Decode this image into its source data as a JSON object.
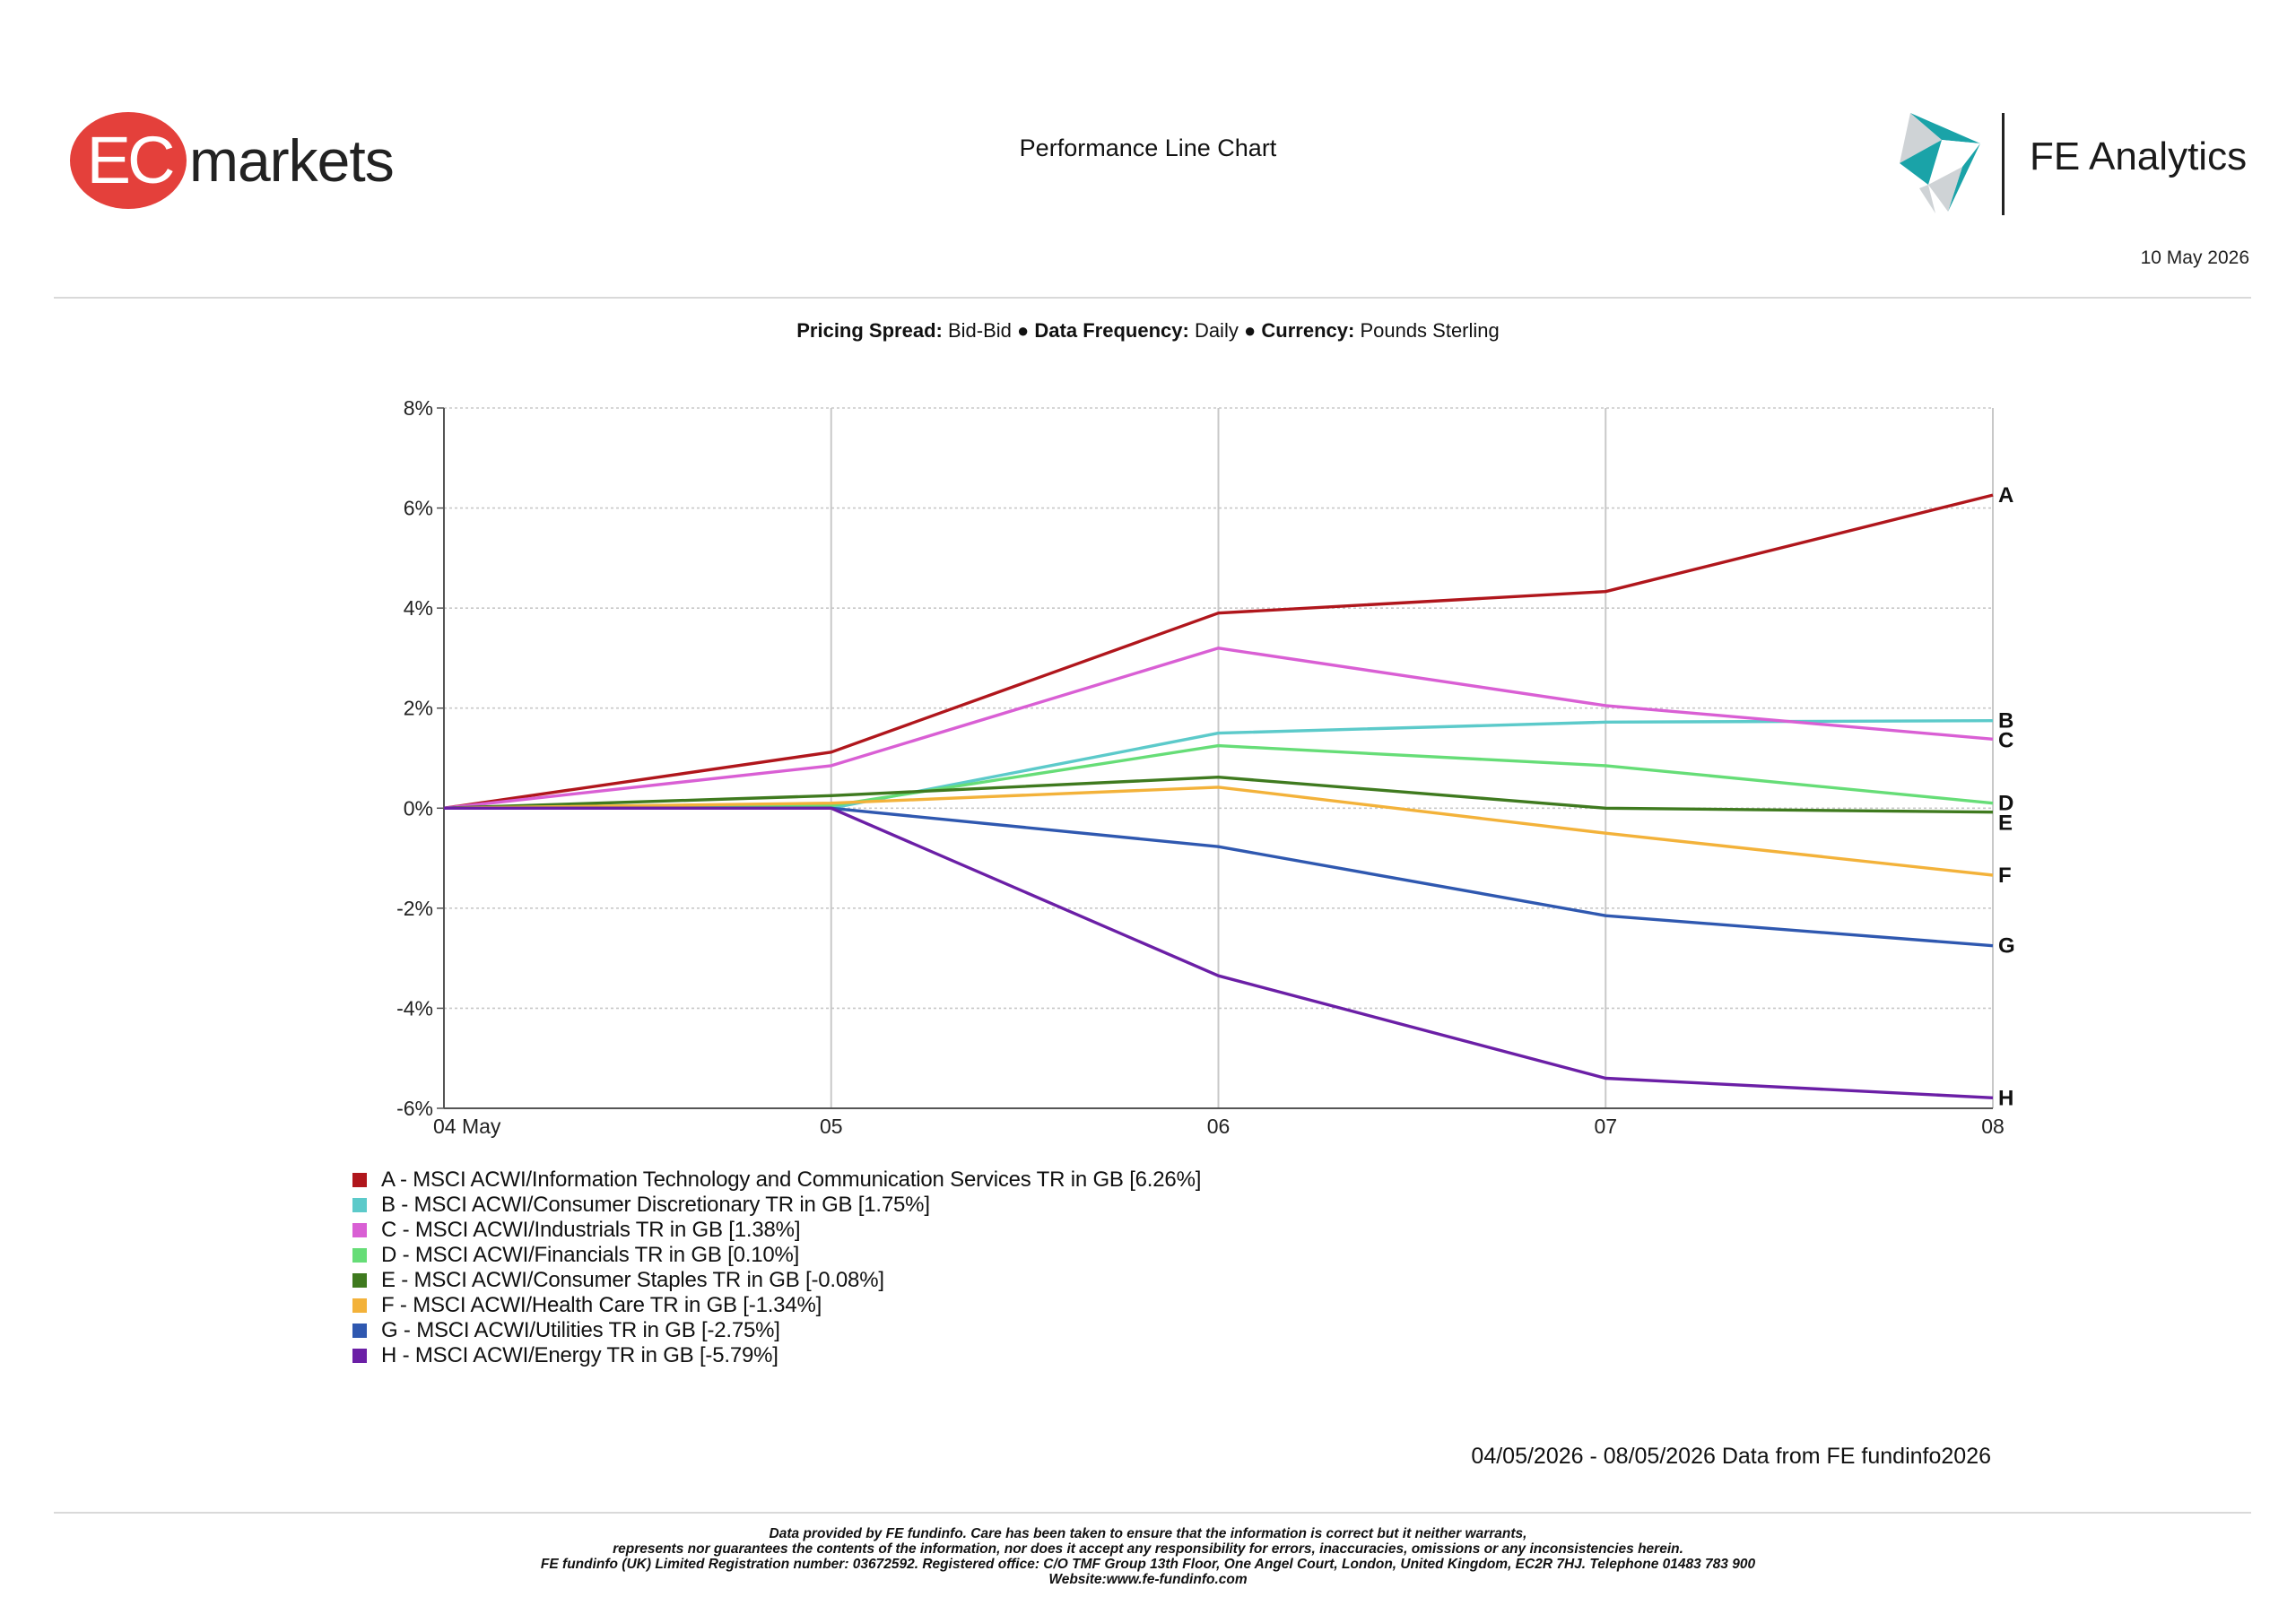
{
  "header": {
    "ec_logo_letters": "EC",
    "ec_logo_word": "markets",
    "title": "Performance Line Chart",
    "fe_logo_word": "FE Analytics",
    "date": "10 May 2026"
  },
  "settings": {
    "pricing_spread_label": "Pricing Spread:",
    "pricing_spread_value": "Bid-Bid",
    "separator": "●",
    "data_frequency_label": "Data Frequency:",
    "data_frequency_value": "Daily",
    "currency_label": "Currency:",
    "currency_value": "Pounds Sterling"
  },
  "colors": {
    "ec_red": "#e4403b",
    "fe_teal": "#1aa3a8",
    "fe_grey": "#cfd3d6",
    "grid": "#c8c8c8",
    "axis": "#555555"
  },
  "chart_data": {
    "type": "line",
    "x": [
      "04 May",
      "05",
      "06",
      "07",
      "08"
    ],
    "ylim": [
      -6,
      8
    ],
    "yticks": [
      8,
      6,
      4,
      2,
      0,
      -2,
      -4,
      -6
    ],
    "ytick_labels": [
      "8%",
      "6%",
      "4%",
      "2%",
      "0%",
      "-2%",
      "-4%",
      "-6%"
    ],
    "grid": true,
    "series": [
      {
        "name": "A - MSCI ACWI/Information Technology and Communication Services TR in GB [6.26%]",
        "end_label": "A",
        "color": "#b0161c",
        "values": [
          0,
          1.12,
          3.9,
          4.33,
          6.26
        ]
      },
      {
        "name": "B - MSCI ACWI/Consumer Discretionary TR in GB [1.75%]",
        "end_label": "B",
        "color": "#5ccaca",
        "values": [
          0,
          0.0,
          1.5,
          1.72,
          1.75
        ]
      },
      {
        "name": "C - MSCI ACWI/Industrials TR in GB [1.38%]",
        "end_label": "C",
        "color": "#d95fd4",
        "values": [
          0,
          0.85,
          3.2,
          2.05,
          1.38
        ]
      },
      {
        "name": "D - MSCI ACWI/Financials TR in GB [0.10%]",
        "end_label": "D",
        "color": "#66dd77",
        "values": [
          0,
          0.05,
          1.25,
          0.85,
          0.1
        ]
      },
      {
        "name": "E - MSCI ACWI/Consumer Staples TR in GB [-0.08%]",
        "end_label": "E",
        "color": "#3f7a1f",
        "values": [
          0,
          0.25,
          0.62,
          0.0,
          -0.08
        ]
      },
      {
        "name": "F - MSCI ACWI/Health Care TR in GB [-1.34%]",
        "end_label": "F",
        "color": "#f3b23a",
        "values": [
          0,
          0.1,
          0.42,
          -0.5,
          -1.34
        ]
      },
      {
        "name": "G - MSCI ACWI/Utilities TR in GB [-2.75%]",
        "end_label": "G",
        "color": "#2f58b0",
        "values": [
          0,
          0.0,
          -0.77,
          -2.15,
          -2.75
        ]
      },
      {
        "name": "H - MSCI ACWI/Energy TR in GB [-5.79%]",
        "end_label": "H",
        "color": "#6b1fa6",
        "values": [
          0,
          0.0,
          -3.35,
          -5.4,
          -5.79
        ]
      }
    ]
  },
  "source_note": "04/05/2026 - 08/05/2026 Data from FE fundinfo2026",
  "footer": {
    "lines": [
      "Data provided by FE fundinfo. Care has been taken to ensure that the information is correct but it neither warrants,",
      "represents nor guarantees the contents of the information, nor does it accept any responsibility for errors, inaccuracies, omissions or any inconsistencies herein.",
      "FE fundinfo (UK) Limited Registration number: 03672592. Registered office: C/O TMF Group 13th Floor, One Angel Court, London, United Kingdom, EC2R 7HJ. Telephone 01483 783 900",
      "Website:www.fe-fundinfo.com"
    ]
  }
}
